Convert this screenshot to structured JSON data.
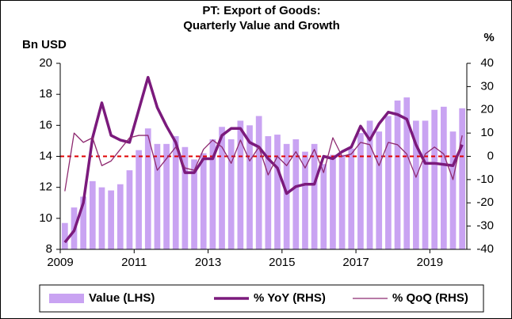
{
  "chart_data": {
    "type": "bar",
    "title": [
      "PT: Export of Goods:",
      "Quarterly Value and Growth"
    ],
    "y_label": "Bn USD",
    "y2_label": "%",
    "categories": [
      "2009",
      null,
      null,
      null,
      null,
      null,
      null,
      null,
      "2011",
      null,
      null,
      null,
      null,
      null,
      null,
      null,
      "2013",
      null,
      null,
      null,
      null,
      null,
      null,
      null,
      "2015",
      null,
      null,
      null,
      null,
      null,
      null,
      null,
      "2017",
      null,
      null,
      null,
      null,
      null,
      null,
      null,
      "2019",
      null,
      null,
      null
    ],
    "series": [
      {
        "name": "Value (LHS)",
        "type": "bar",
        "axis": "y",
        "color": "#c9a3f2",
        "values": [
          9.7,
          10.7,
          11.4,
          12.4,
          12.0,
          11.8,
          12.2,
          13.1,
          14.4,
          15.8,
          14.8,
          14.8,
          15.3,
          14.6,
          13.8,
          14.2,
          15.1,
          15.9,
          15.1,
          16.3,
          16.0,
          16.6,
          15.3,
          15.4,
          14.8,
          15.1,
          14.3,
          14.8,
          13.5,
          14.1,
          14.1,
          14.5,
          15.5,
          16.3,
          15.6,
          16.6,
          17.6,
          17.8,
          16.3,
          16.3,
          17.0,
          17.2,
          15.6,
          17.1
        ]
      },
      {
        "name": "% YoY (RHS)",
        "type": "line",
        "axis": "y2",
        "color": "#7b1a7c",
        "width": 3.5,
        "values": [
          -37,
          -32,
          -20,
          8,
          23,
          9,
          7,
          6,
          20,
          34,
          21,
          13,
          6,
          -7,
          -7,
          -1,
          -1,
          9,
          12,
          12,
          6,
          4,
          -1,
          -5,
          -16,
          -13,
          -12,
          -12,
          0,
          -1,
          2,
          4,
          13,
          7,
          14,
          19,
          18,
          16,
          5,
          -3,
          -3,
          -3.5,
          -4,
          5
        ]
      },
      {
        "name": "% QoQ (RHS)",
        "type": "line",
        "axis": "y2",
        "color": "#8e2a70",
        "width": 1.3,
        "values": [
          -15,
          10,
          6,
          8,
          -4,
          -2,
          3,
          8,
          9,
          9,
          -6,
          -1,
          4,
          -5,
          -6,
          3,
          7,
          4,
          -3,
          7,
          -2,
          4,
          -8,
          0,
          -4,
          2,
          -5,
          3,
          -7,
          8,
          0,
          1,
          6,
          5,
          -4,
          6,
          5,
          1,
          -9,
          1,
          4,
          1,
          -10,
          9
        ]
      }
    ],
    "ylim": [
      8,
      20
    ],
    "yticks": [
      8,
      10,
      12,
      14,
      16,
      18,
      20
    ],
    "y2lim": [
      -40,
      40
    ],
    "y2ticks": [
      -40,
      -30,
      -20,
      -10,
      0,
      10,
      20,
      30,
      40
    ],
    "reference_line": {
      "value": 0,
      "axis": "y2",
      "color": "#e00000"
    },
    "legend": "bottom"
  }
}
